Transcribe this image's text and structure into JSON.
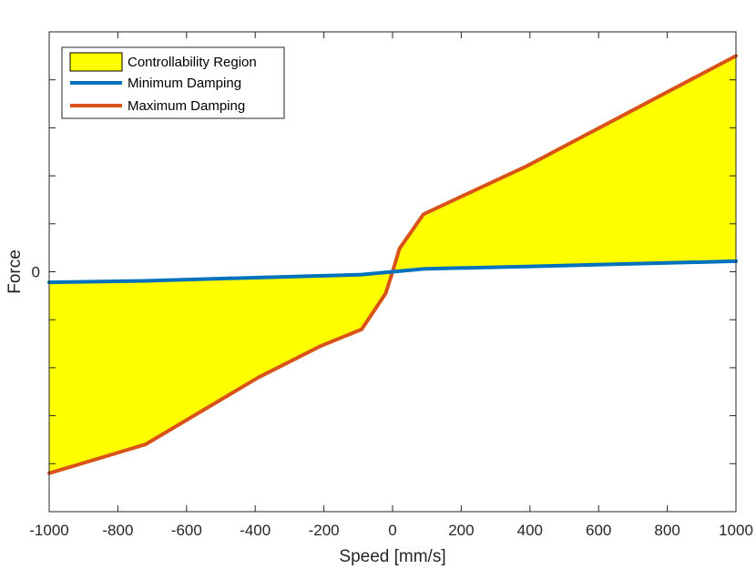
{
  "chart_data": {
    "type": "area",
    "xlabel": "Speed [mm/s]",
    "ylabel": "Force",
    "xlim": [
      -1000,
      1000
    ],
    "ylim": [
      -5,
      5
    ],
    "x_ticks": [
      -1000,
      -800,
      -600,
      -400,
      -200,
      0,
      200,
      400,
      600,
      800,
      1000
    ],
    "x_tick_labels": [
      "-1000",
      "-800",
      "-600",
      "-400",
      "-200",
      "0",
      "200",
      "400",
      "600",
      "800",
      "1000"
    ],
    "y_ticks": [
      -4,
      -3,
      -2,
      -1,
      0,
      1,
      2,
      3,
      4
    ],
    "y_tick_labels": [
      "",
      "",
      "",
      "",
      "0",
      "",
      "",
      "",
      ""
    ],
    "grid": false,
    "legend_position": "top-left",
    "region": {
      "name": "Controllability Region",
      "color": "#ffff00"
    },
    "series": [
      {
        "name": "Minimum Damping",
        "color": "#0072bd",
        "x": [
          -1000,
          -720,
          -390,
          -90,
          0,
          90,
          390,
          1000
        ],
        "y": [
          -0.22,
          -0.19,
          -0.12,
          -0.06,
          0.0,
          0.06,
          0.11,
          0.22
        ]
      },
      {
        "name": "Maximum Damping",
        "color": "#d95319",
        "x": [
          -1000,
          -720,
          -390,
          -210,
          -90,
          -20,
          0,
          20,
          90,
          390,
          1000
        ],
        "y": [
          -4.2,
          -3.6,
          -2.2,
          -1.55,
          -1.2,
          -0.45,
          0.0,
          0.48,
          1.2,
          2.2,
          4.5
        ]
      }
    ]
  }
}
